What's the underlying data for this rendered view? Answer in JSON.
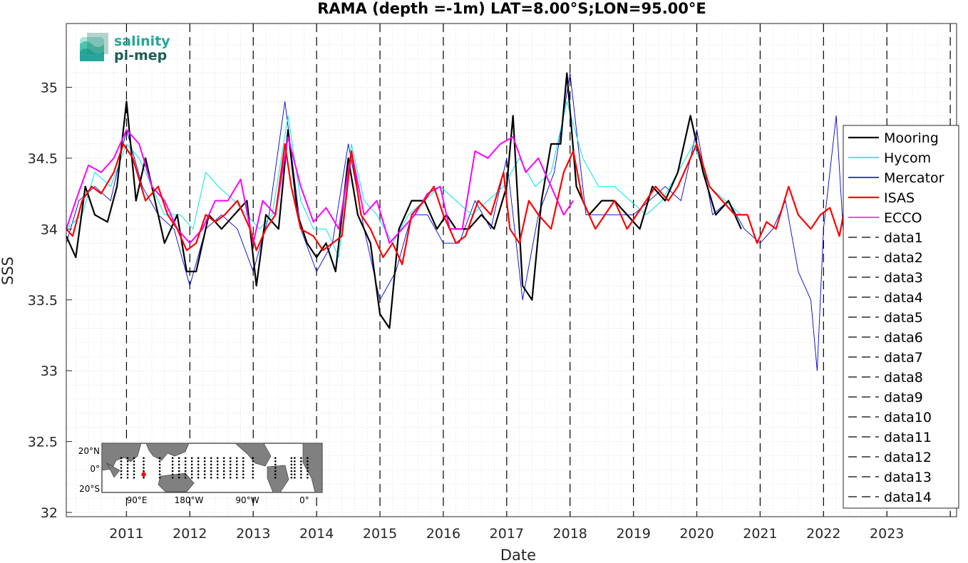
{
  "chart_data": {
    "type": "line",
    "title": "RAMA (depth =-1m) LAT=8.00°S;LON=95.00°E",
    "xlabel": "Date",
    "ylabel": "SSS",
    "xlim": [
      2010.05,
      2024.1
    ],
    "ylim": [
      31.97,
      35.45
    ],
    "xticks": [
      "2011",
      "2012",
      "2013",
      "2014",
      "2015",
      "2016",
      "2017",
      "2018",
      "2019",
      "2020",
      "2021",
      "2022",
      "2023"
    ],
    "yticks": [
      "32",
      "32.5",
      "33",
      "33.5",
      "34",
      "34.5",
      "35"
    ],
    "grid": true,
    "legend_position": "right",
    "series": [
      {
        "name": "Mooring",
        "color": "#000000",
        "x": [
          2010.05,
          2010.2,
          2010.35,
          2010.5,
          2010.7,
          2010.85,
          2011.0,
          2011.15,
          2011.3,
          2011.45,
          2011.6,
          2011.8,
          2011.95,
          2012.1,
          2012.3,
          2012.5,
          2012.7,
          2012.9,
          2013.05,
          2013.2,
          2013.4,
          2013.55,
          2013.7,
          2013.85,
          2014.0,
          2014.15,
          2014.3,
          2014.5,
          2014.65,
          2014.85,
          2015.0,
          2015.15,
          2015.3,
          2015.5,
          2015.7,
          2015.9,
          2016.05,
          2016.2,
          2016.4,
          2016.6,
          2016.8,
          2017.0,
          2017.1,
          2017.25,
          2017.4,
          2017.55,
          2017.7,
          2017.85,
          2017.95,
          2018.1,
          2018.3,
          2018.5,
          2018.7,
          2018.9,
          2019.1,
          2019.3,
          2019.5,
          2019.7,
          2019.9,
          2020.1,
          2020.3,
          2020.5,
          2020.7
        ],
        "y": [
          33.95,
          33.8,
          34.3,
          34.1,
          34.05,
          34.3,
          34.9,
          34.2,
          34.5,
          34.2,
          33.9,
          34.1,
          33.7,
          33.7,
          34.1,
          34.0,
          34.1,
          34.2,
          33.6,
          34.1,
          34.0,
          34.7,
          34.1,
          33.9,
          33.8,
          33.9,
          33.7,
          34.5,
          34.1,
          33.9,
          33.4,
          33.3,
          34.0,
          34.2,
          34.2,
          34.0,
          34.1,
          34.0,
          34.0,
          34.1,
          34.0,
          34.3,
          34.8,
          33.6,
          33.5,
          34.2,
          34.6,
          34.6,
          35.1,
          34.3,
          34.1,
          34.2,
          34.2,
          34.1,
          34.0,
          34.3,
          34.2,
          34.4,
          34.8,
          34.4,
          34.1,
          34.2,
          34.0
        ]
      },
      {
        "name": "Hycom",
        "color": "#00e5e5",
        "x": [
          2010.05,
          2010.3,
          2010.5,
          2010.75,
          2011.0,
          2011.2,
          2011.4,
          2011.6,
          2011.85,
          2012.05,
          2012.25,
          2012.45,
          2012.7,
          2012.9,
          2013.1,
          2013.3,
          2013.55,
          2013.75,
          2013.95,
          2014.15,
          2014.35,
          2014.55,
          2014.75,
          2014.95,
          2015.2,
          2015.45,
          2015.7,
          2015.95,
          2016.2,
          2016.45,
          2016.7,
          2016.95,
          2017.2,
          2017.45,
          2017.7,
          2017.95,
          2018.2,
          2018.45,
          2018.7,
          2018.95,
          2019.2,
          2019.45,
          2019.7,
          2019.95,
          2020.2,
          2020.45,
          2020.7
        ],
        "y": [
          34.0,
          34.1,
          34.4,
          34.3,
          34.6,
          34.5,
          34.3,
          34.1,
          34.1,
          34.0,
          34.4,
          34.3,
          34.2,
          34.1,
          34.0,
          34.1,
          34.8,
          34.2,
          34.0,
          34.0,
          33.8,
          34.6,
          34.2,
          34.1,
          33.9,
          34.1,
          34.2,
          34.3,
          34.2,
          34.1,
          34.2,
          34.3,
          34.5,
          34.3,
          34.4,
          34.9,
          34.5,
          34.3,
          34.3,
          34.2,
          34.1,
          34.2,
          34.4,
          34.6,
          34.3,
          34.2,
          34.1
        ]
      },
      {
        "name": "Mercator",
        "color": "#0000cc",
        "x": [
          2010.05,
          2010.25,
          2010.5,
          2010.75,
          2011.0,
          2011.25,
          2011.5,
          2011.75,
          2012.0,
          2012.25,
          2012.5,
          2012.75,
          2013.0,
          2013.25,
          2013.5,
          2013.75,
          2014.0,
          2014.25,
          2014.5,
          2014.75,
          2015.0,
          2015.25,
          2015.5,
          2015.75,
          2016.0,
          2016.25,
          2016.5,
          2016.75,
          2017.0,
          2017.25,
          2017.5,
          2017.75,
          2018.0,
          2018.25,
          2018.5,
          2018.75,
          2019.0,
          2019.25,
          2019.5,
          2019.75,
          2020.0,
          2020.25,
          2020.5,
          2020.75,
          2021.0,
          2021.2,
          2021.4,
          2021.6,
          2021.8,
          2021.9,
          2022.0,
          2022.2,
          2022.35
        ],
        "y": [
          33.9,
          34.2,
          34.3,
          34.2,
          34.7,
          34.3,
          34.1,
          34.0,
          33.6,
          34.0,
          34.1,
          34.0,
          33.7,
          34.1,
          34.9,
          34.0,
          33.7,
          33.9,
          34.6,
          34.0,
          33.5,
          33.7,
          34.1,
          34.1,
          33.9,
          33.9,
          34.2,
          34.0,
          34.5,
          33.5,
          34.1,
          34.4,
          35.1,
          34.1,
          34.1,
          34.1,
          34.1,
          34.2,
          34.3,
          34.2,
          34.7,
          34.1,
          34.2,
          34.0,
          33.9,
          34.0,
          34.2,
          33.7,
          33.5,
          33.0,
          34.0,
          34.8,
          33.7
        ]
      },
      {
        "name": "ISAS",
        "color": "#ff0000",
        "x": [
          2010.05,
          2010.15,
          2010.3,
          2010.45,
          2010.6,
          2010.8,
          2010.95,
          2011.1,
          2011.3,
          2011.5,
          2011.65,
          2011.8,
          2011.95,
          2012.1,
          2012.25,
          2012.4,
          2012.55,
          2012.75,
          2012.95,
          2013.05,
          2013.2,
          2013.35,
          2013.5,
          2013.6,
          2013.75,
          2013.95,
          2014.1,
          2014.25,
          2014.4,
          2014.55,
          2014.7,
          2014.85,
          2015.05,
          2015.2,
          2015.35,
          2015.5,
          2015.7,
          2015.85,
          2016.0,
          2016.2,
          2016.35,
          2016.55,
          2016.75,
          2016.95,
          2017.05,
          2017.2,
          2017.35,
          2017.5,
          2017.7,
          2017.9,
          2018.05,
          2018.2,
          2018.4,
          2018.55,
          2018.7,
          2018.9,
          2019.05,
          2019.2,
          2019.35,
          2019.55,
          2019.7,
          2019.9,
          2020.0,
          2020.2,
          2020.4,
          2020.6,
          2020.8,
          2020.95,
          2021.1,
          2021.25,
          2021.45,
          2021.6,
          2021.8,
          2021.95,
          2022.1,
          2022.25,
          2022.4
        ],
        "y": [
          34.0,
          33.95,
          34.2,
          34.3,
          34.25,
          34.4,
          34.6,
          34.5,
          34.2,
          34.3,
          34.1,
          34.0,
          33.85,
          33.9,
          34.1,
          34.05,
          34.1,
          34.2,
          34.0,
          33.85,
          34.0,
          34.1,
          34.6,
          34.3,
          34.0,
          33.95,
          33.85,
          33.9,
          33.95,
          34.55,
          34.1,
          34.0,
          33.8,
          33.9,
          33.75,
          34.1,
          34.2,
          34.3,
          34.1,
          33.9,
          33.95,
          34.2,
          34.1,
          34.4,
          34.0,
          33.9,
          34.2,
          34.1,
          34.0,
          34.4,
          34.55,
          34.2,
          34.0,
          34.1,
          34.2,
          34.0,
          34.1,
          34.2,
          34.3,
          34.2,
          34.3,
          34.5,
          34.6,
          34.3,
          34.2,
          34.1,
          34.1,
          33.9,
          34.05,
          34.0,
          34.3,
          34.1,
          34.0,
          34.1,
          34.15,
          33.95,
          34.3
        ]
      },
      {
        "name": "ECCO",
        "color": "#ff00ff",
        "x": [
          2010.05,
          2010.2,
          2010.4,
          2010.6,
          2010.8,
          2011.0,
          2011.2,
          2011.4,
          2011.6,
          2011.8,
          2012.0,
          2012.2,
          2012.4,
          2012.6,
          2012.8,
          2013.0,
          2013.15,
          2013.35,
          2013.55,
          2013.75,
          2013.95,
          2014.15,
          2014.35,
          2014.55,
          2014.75,
          2014.95,
          2015.15,
          2015.35,
          2015.55,
          2015.75,
          2015.95,
          2016.1,
          2016.3,
          2016.5,
          2016.7,
          2016.9,
          2017.1,
          2017.3,
          2017.5,
          2017.7,
          2017.9,
          2018.05
        ],
        "y": [
          34.0,
          34.2,
          34.45,
          34.4,
          34.5,
          34.7,
          34.6,
          34.3,
          34.2,
          34.0,
          33.9,
          34.0,
          34.2,
          34.2,
          34.35,
          33.9,
          34.2,
          34.1,
          34.65,
          34.3,
          34.05,
          34.15,
          34.0,
          34.55,
          34.1,
          34.2,
          33.9,
          34.0,
          34.1,
          34.25,
          34.3,
          34.0,
          34.0,
          34.55,
          34.5,
          34.6,
          34.65,
          34.4,
          34.5,
          34.3,
          34.1,
          34.2
        ]
      },
      {
        "name": "data1",
        "color": "#000000",
        "dashed_x": 2011.0
      },
      {
        "name": "data2",
        "color": "#000000",
        "dashed_x": 2012.0
      },
      {
        "name": "data3",
        "color": "#000000",
        "dashed_x": 2013.0
      },
      {
        "name": "data4",
        "color": "#000000",
        "dashed_x": 2014.0
      },
      {
        "name": "data5",
        "color": "#000000",
        "dashed_x": 2015.0
      },
      {
        "name": "data6",
        "color": "#000000",
        "dashed_x": 2016.0
      },
      {
        "name": "data7",
        "color": "#000000",
        "dashed_x": 2017.0
      },
      {
        "name": "data8",
        "color": "#000000",
        "dashed_x": 2018.0
      },
      {
        "name": "data9",
        "color": "#000000",
        "dashed_x": 2019.0
      },
      {
        "name": "data10",
        "color": "#000000",
        "dashed_x": 2020.0
      },
      {
        "name": "data11",
        "color": "#000000",
        "dashed_x": 2021.0
      },
      {
        "name": "data12",
        "color": "#000000",
        "dashed_x": 2022.0
      },
      {
        "name": "data13",
        "color": "#000000",
        "dashed_x": 2023.0
      },
      {
        "name": "data14",
        "color": "#000000",
        "dashed_x": 2024.0
      }
    ]
  },
  "logo": {
    "line1": "salinity",
    "line2": "pi-mep"
  },
  "inset_map": {
    "lat_labels": [
      "20°N",
      "0°",
      "20°S"
    ],
    "lon_labels": [
      "90°E",
      "180°W",
      "90°W",
      "0°"
    ],
    "marker": {
      "lat": -8.0,
      "lon": 95.0,
      "color": "#ff0000"
    }
  }
}
